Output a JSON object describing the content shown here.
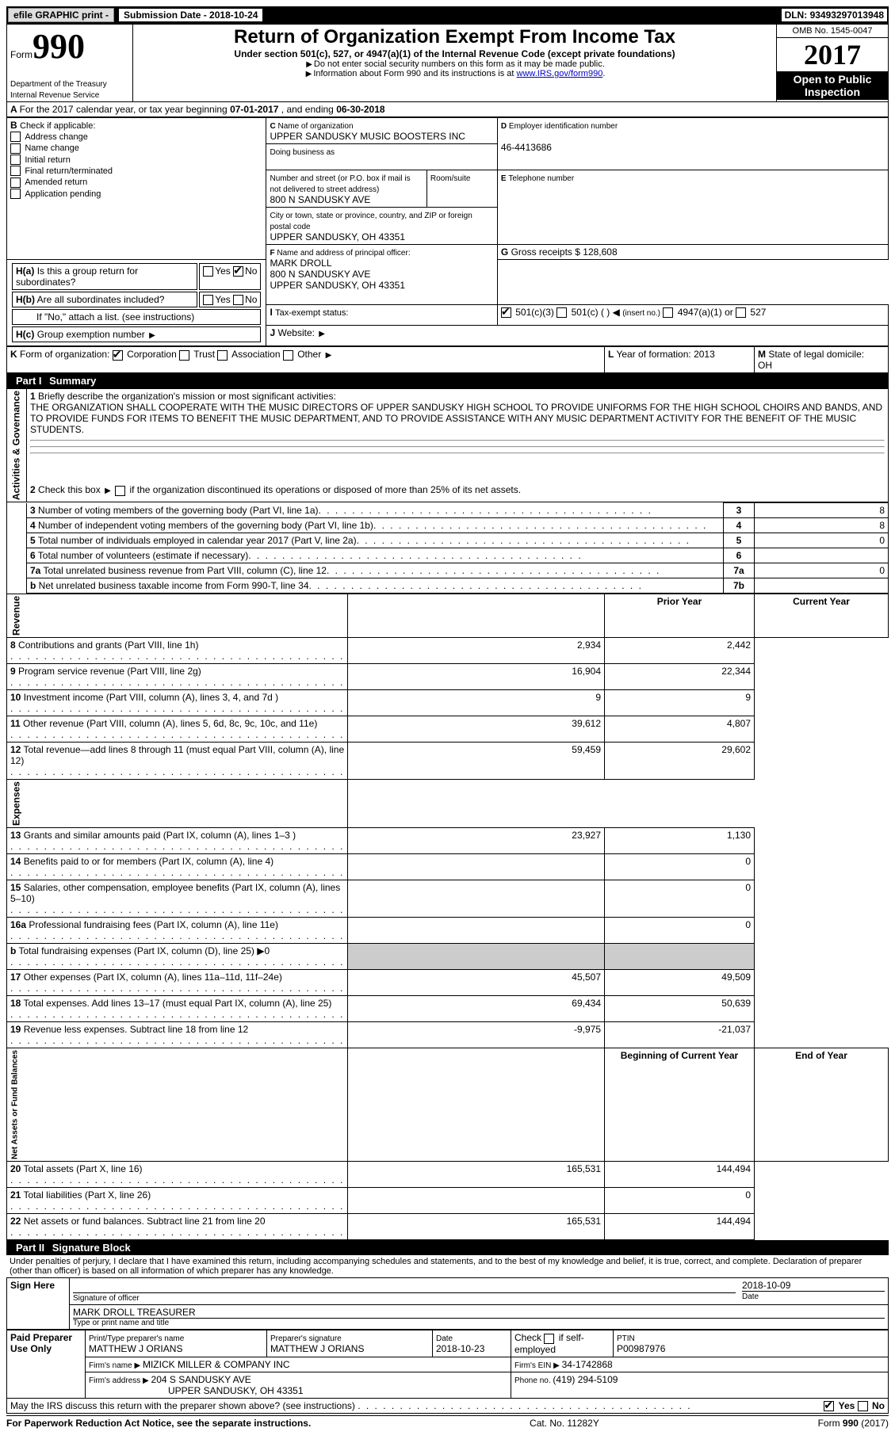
{
  "topbar": {
    "efile": "efile GRAPHIC print -",
    "submission_label": "Submission Date - ",
    "submission_date": "2018-10-24",
    "dln_label": "DLN: ",
    "dln": "93493297013948"
  },
  "header": {
    "form_word": "Form",
    "form_no": "990",
    "dept1": "Department of the Treasury",
    "dept2": "Internal Revenue Service",
    "title": "Return of Organization Exempt From Income Tax",
    "subtitle": "Under section 501(c), 527, or 4947(a)(1) of the Internal Revenue Code (except private foundations)",
    "note1": "Do not enter social security numbers on this form as it may be made public.",
    "note2_pre": "Information about Form 990 and its instructions is at ",
    "note2_link": "www.IRS.gov/form990",
    "omb": "OMB No. 1545-0047",
    "year": "2017",
    "open": "Open to Public Inspection"
  },
  "A": {
    "text_pre": "For the 2017 calendar year, or tax year beginning ",
    "begin": "07-01-2017",
    "mid": " , and ending ",
    "end": "06-30-2018"
  },
  "B": {
    "label": "Check if applicable:",
    "opts": [
      "Address change",
      "Name change",
      "Initial return",
      "Final return/terminated",
      "Amended return",
      "Application pending"
    ]
  },
  "C": {
    "name_label": "Name of organization",
    "name": "UPPER SANDUSKY MUSIC BOOSTERS INC",
    "dba_label": "Doing business as",
    "addr_label": "Number and street (or P.O. box if mail is not delivered to street address)",
    "room_label": "Room/suite",
    "addr": "800 N SANDUSKY AVE",
    "city_label": "City or town, state or province, country, and ZIP or foreign postal code",
    "city": "UPPER SANDUSKY, OH  43351"
  },
  "D": {
    "label": "Employer identification number",
    "value": "46-4413686"
  },
  "E": {
    "label": "Telephone number",
    "value": ""
  },
  "G": {
    "label": "Gross receipts $ ",
    "value": "128,608"
  },
  "F": {
    "label": "Name and address of principal officer:",
    "name": "MARK DROLL",
    "addr": "800 N SANDUSKY AVE",
    "city": "UPPER SANDUSKY, OH  43351"
  },
  "H": {
    "a": "Is this a group return for subordinates?",
    "b": "Are all subordinates included?",
    "b_note": "If \"No,\" attach a list. (see instructions)",
    "c": "Group exemption number"
  },
  "I": {
    "label": "Tax-exempt status:",
    "o1": "501(c)(3)",
    "o2": "501(c) (   )",
    "o2b": "(insert no.)",
    "o3": "4947(a)(1) or",
    "o4": "527"
  },
  "J": {
    "label": "Website:"
  },
  "K": {
    "label": "Form of organization:",
    "opts": [
      "Corporation",
      "Trust",
      "Association",
      "Other"
    ]
  },
  "L": {
    "label": "Year of formation: ",
    "value": "2013"
  },
  "M": {
    "label": "State of legal domicile:",
    "value": "OH"
  },
  "part1": {
    "title_pt": "Part I",
    "title": "Summary",
    "side_ag": "Activities & Governance",
    "side_rev": "Revenue",
    "side_exp": "Expenses",
    "side_na": "Net Assets or Fund Balances",
    "l1_label": "Briefly describe the organization's mission or most significant activities:",
    "l1_text": "THE ORGANIZATION SHALL COOPERATE WITH THE MUSIC DIRECTORS OF UPPER SANDUSKY HIGH SCHOOL TO PROVIDE UNIFORMS FOR THE HIGH SCHOOL CHOIRS AND BANDS, AND TO PROVIDE FUNDS FOR ITEMS TO BENEFIT THE MUSIC DEPARTMENT, AND TO PROVIDE ASSISTANCE WITH ANY MUSIC DEPARTMENT ACTIVITY FOR THE BENEFIT OF THE MUSIC STUDENTS.",
    "l2": "Check this box ▶       if the organization discontinued its operations or disposed of more than 25% of its net assets.",
    "rows_single": [
      {
        "n": "3",
        "t": "Number of voting members of the governing body (Part VI, line 1a)",
        "box": "3",
        "v": "8"
      },
      {
        "n": "4",
        "t": "Number of independent voting members of the governing body (Part VI, line 1b)",
        "box": "4",
        "v": "8"
      },
      {
        "n": "5",
        "t": "Total number of individuals employed in calendar year 2017 (Part V, line 2a)",
        "box": "5",
        "v": "0"
      },
      {
        "n": "6",
        "t": "Total number of volunteers (estimate if necessary)",
        "box": "6",
        "v": ""
      },
      {
        "n": "7a",
        "t": "Total unrelated business revenue from Part VIII, column (C), line 12",
        "box": "7a",
        "v": "0"
      },
      {
        "n": "b",
        "t": "Net unrelated business taxable income from Form 990-T, line 34",
        "box": "7b",
        "v": ""
      }
    ],
    "col_py": "Prior Year",
    "col_cy": "Current Year",
    "rows_rev": [
      {
        "n": "8",
        "t": "Contributions and grants (Part VIII, line 1h)",
        "py": "2,934",
        "cy": "2,442"
      },
      {
        "n": "9",
        "t": "Program service revenue (Part VIII, line 2g)",
        "py": "16,904",
        "cy": "22,344"
      },
      {
        "n": "10",
        "t": "Investment income (Part VIII, column (A), lines 3, 4, and 7d )",
        "py": "9",
        "cy": "9"
      },
      {
        "n": "11",
        "t": "Other revenue (Part VIII, column (A), lines 5, 6d, 8c, 9c, 10c, and 11e)",
        "py": "39,612",
        "cy": "4,807"
      },
      {
        "n": "12",
        "t": "Total revenue—add lines 8 through 11 (must equal Part VIII, column (A), line 12)",
        "py": "59,459",
        "cy": "29,602"
      }
    ],
    "rows_exp": [
      {
        "n": "13",
        "t": "Grants and similar amounts paid (Part IX, column (A), lines 1–3 )",
        "py": "23,927",
        "cy": "1,130"
      },
      {
        "n": "14",
        "t": "Benefits paid to or for members (Part IX, column (A), line 4)",
        "py": "",
        "cy": "0"
      },
      {
        "n": "15",
        "t": "Salaries, other compensation, employee benefits (Part IX, column (A), lines 5–10)",
        "py": "",
        "cy": "0"
      },
      {
        "n": "16a",
        "t": "Professional fundraising fees (Part IX, column (A), line 11e)",
        "py": "",
        "cy": "0"
      },
      {
        "n": "b",
        "t": "Total fundraising expenses (Part IX, column (D), line 25) ▶0",
        "py": "SHADE",
        "cy": "SHADE"
      },
      {
        "n": "17",
        "t": "Other expenses (Part IX, column (A), lines 11a–11d, 11f–24e)",
        "py": "45,507",
        "cy": "49,509"
      },
      {
        "n": "18",
        "t": "Total expenses. Add lines 13–17 (must equal Part IX, column (A), line 25)",
        "py": "69,434",
        "cy": "50,639"
      },
      {
        "n": "19",
        "t": "Revenue less expenses. Subtract line 18 from line 12",
        "py": "-9,975",
        "cy": "-21,037"
      }
    ],
    "col_bcy": "Beginning of Current Year",
    "col_eoy": "End of Year",
    "rows_na": [
      {
        "n": "20",
        "t": "Total assets (Part X, line 16)",
        "py": "165,531",
        "cy": "144,494"
      },
      {
        "n": "21",
        "t": "Total liabilities (Part X, line 26)",
        "py": "",
        "cy": "0"
      },
      {
        "n": "22",
        "t": "Net assets or fund balances. Subtract line 21 from line 20",
        "py": "165,531",
        "cy": "144,494"
      }
    ]
  },
  "part2": {
    "title_pt": "Part II",
    "title": "Signature Block",
    "decl": "Under penalties of perjury, I declare that I have examined this return, including accompanying schedules and statements, and to the best of my knowledge and belief, it is true, correct, and complete. Declaration of preparer (other than officer) is based on all information of which preparer has any knowledge.",
    "sign_here": "Sign Here",
    "sig_officer": "Signature of officer",
    "sig_date": "Date",
    "sig_date_val": "2018-10-09",
    "name_title": "Type or print name and title",
    "name_title_val": "MARK DROLL TREASURER",
    "paid": "Paid Preparer Use Only",
    "prep_name_l": "Print/Type preparer's name",
    "prep_name": "MATTHEW J ORIANS",
    "prep_sig_l": "Preparer's signature",
    "prep_sig": "MATTHEW J ORIANS",
    "prep_date_l": "Date",
    "prep_date": "2018-10-23",
    "prep_check": "Check       if self-employed",
    "ptin_l": "PTIN",
    "ptin": "P00987976",
    "firm_name_l": "Firm's name    ▶ ",
    "firm_name": "MIZICK MILLER & COMPANY INC",
    "firm_ein_l": "Firm's EIN ▶ ",
    "firm_ein": "34-1742868",
    "firm_addr_l": "Firm's address ▶ ",
    "firm_addr": "204 S SANDUSKY AVE",
    "firm_city": "UPPER SANDUSKY, OH  43351",
    "phone_l": "Phone no. ",
    "phone": "(419) 294-5109",
    "discuss": "May the IRS discuss this return with the preparer shown above? (see instructions)"
  },
  "footer": {
    "left": "For Paperwork Reduction Act Notice, see the separate instructions.",
    "mid": "Cat. No. 11282Y",
    "right": "Form 990 (2017)"
  }
}
